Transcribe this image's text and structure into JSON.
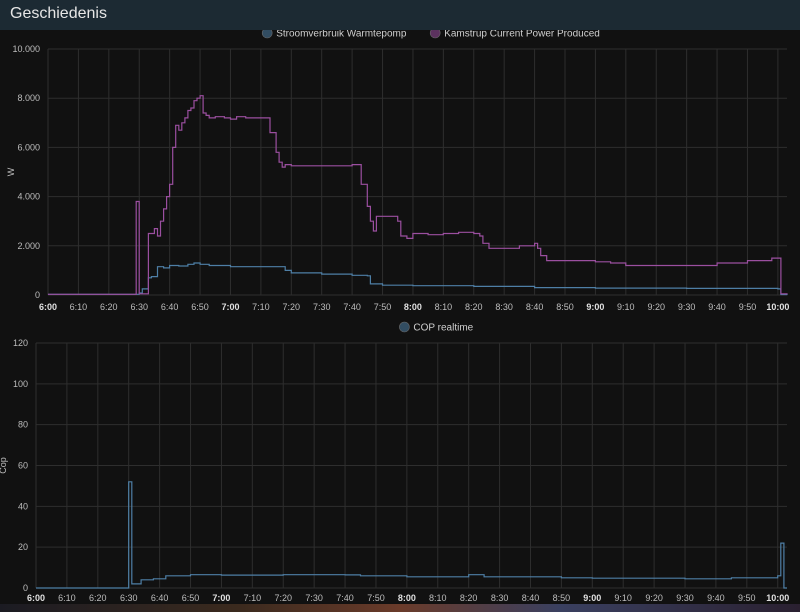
{
  "header": {
    "title": "Geschiedenis"
  },
  "chart_data": [
    {
      "type": "line",
      "step": true,
      "ylabel": "W",
      "ylim": [
        0,
        10000
      ],
      "yticks": [
        0,
        2000,
        4000,
        6000,
        8000,
        10000
      ],
      "ytick_labels": [
        "0",
        "2.000",
        "4.000",
        "6.000",
        "8.000",
        "10.000"
      ],
      "xlim": [
        "6:00",
        "10:03"
      ],
      "xticks": [
        "6:00",
        "6:10",
        "6:20",
        "6:30",
        "6:40",
        "6:50",
        "7:00",
        "7:10",
        "7:20",
        "7:30",
        "7:40",
        "7:50",
        "8:00",
        "8:10",
        "8:20",
        "8:30",
        "8:40",
        "8:50",
        "9:00",
        "9:10",
        "9:20",
        "9:30",
        "9:40",
        "9:50",
        "10:00"
      ],
      "xticks_bold": [
        "6:00",
        "7:00",
        "8:00",
        "9:00",
        "10:00"
      ],
      "grid": true,
      "legend_position": "top-center",
      "series": [
        {
          "name": "Stroomverbruik Warmtepomp",
          "color": "#4e7fa6",
          "points": [
            [
              "6:00",
              30
            ],
            [
              "6:29",
              30
            ],
            [
              "6:30",
              80
            ],
            [
              "6:31",
              250
            ],
            [
              "6:33",
              700
            ],
            [
              "6:34",
              750
            ],
            [
              "6:36",
              1150
            ],
            [
              "6:38",
              1100
            ],
            [
              "6:40",
              1200
            ],
            [
              "6:43",
              1180
            ],
            [
              "6:46",
              1250
            ],
            [
              "6:48",
              1300
            ],
            [
              "6:50",
              1250
            ],
            [
              "6:53",
              1200
            ],
            [
              "7:00",
              1150
            ],
            [
              "7:15",
              1150
            ],
            [
              "7:18",
              1000
            ],
            [
              "7:20",
              900
            ],
            [
              "7:30",
              850
            ],
            [
              "7:40",
              800
            ],
            [
              "7:45",
              780
            ],
            [
              "7:46",
              450
            ],
            [
              "7:50",
              400
            ],
            [
              "8:00",
              380
            ],
            [
              "8:20",
              350
            ],
            [
              "8:40",
              300
            ],
            [
              "9:00",
              280
            ],
            [
              "9:30",
              270
            ],
            [
              "10:00",
              250
            ],
            [
              "10:01",
              20
            ],
            [
              "10:03",
              40
            ]
          ]
        },
        {
          "name": "Kamstrup Current Power Produced",
          "color": "#9b4fa0",
          "points": [
            [
              "6:00",
              30
            ],
            [
              "6:28",
              30
            ],
            [
              "6:29",
              3800
            ],
            [
              "6:30",
              50
            ],
            [
              "6:32",
              50
            ],
            [
              "6:33",
              2500
            ],
            [
              "6:35",
              2700
            ],
            [
              "6:36",
              2400
            ],
            [
              "6:37",
              3000
            ],
            [
              "6:38",
              3500
            ],
            [
              "6:39",
              4000
            ],
            [
              "6:40",
              4500
            ],
            [
              "6:41",
              6000
            ],
            [
              "6:42",
              6900
            ],
            [
              "6:43",
              6700
            ],
            [
              "6:44",
              7000
            ],
            [
              "6:45",
              7200
            ],
            [
              "6:46",
              7500
            ],
            [
              "6:47",
              7600
            ],
            [
              "6:48",
              7900
            ],
            [
              "6:49",
              8000
            ],
            [
              "6:50",
              8100
            ],
            [
              "6:51",
              7400
            ],
            [
              "6:52",
              7300
            ],
            [
              "6:53",
              7200
            ],
            [
              "6:55",
              7250
            ],
            [
              "6:58",
              7200
            ],
            [
              "7:00",
              7150
            ],
            [
              "7:02",
              7250
            ],
            [
              "7:05",
              7200
            ],
            [
              "7:12",
              7200
            ],
            [
              "7:13",
              6600
            ],
            [
              "7:15",
              5800
            ],
            [
              "7:16",
              5400
            ],
            [
              "7:17",
              5200
            ],
            [
              "7:18",
              5300
            ],
            [
              "7:20",
              5250
            ],
            [
              "7:40",
              5300
            ],
            [
              "7:43",
              4500
            ],
            [
              "7:45",
              3600
            ],
            [
              "7:46",
              3000
            ],
            [
              "7:47",
              2600
            ],
            [
              "7:48",
              3200
            ],
            [
              "7:55",
              3000
            ],
            [
              "7:56",
              2400
            ],
            [
              "7:58",
              2300
            ],
            [
              "8:00",
              2500
            ],
            [
              "8:05",
              2450
            ],
            [
              "8:10",
              2500
            ],
            [
              "8:15",
              2550
            ],
            [
              "8:20",
              2500
            ],
            [
              "8:22",
              2400
            ],
            [
              "8:23",
              2100
            ],
            [
              "8:25",
              1900
            ],
            [
              "8:35",
              2000
            ],
            [
              "8:40",
              2100
            ],
            [
              "8:41",
              1900
            ],
            [
              "8:42",
              1600
            ],
            [
              "8:44",
              1400
            ],
            [
              "8:50",
              1400
            ],
            [
              "9:00",
              1350
            ],
            [
              "9:05",
              1300
            ],
            [
              "9:10",
              1200
            ],
            [
              "9:40",
              1300
            ],
            [
              "9:50",
              1400
            ],
            [
              "9:58",
              1500
            ],
            [
              "10:00",
              1500
            ],
            [
              "10:01",
              50
            ],
            [
              "10:03",
              30
            ]
          ]
        }
      ]
    },
    {
      "type": "line",
      "step": true,
      "ylabel": "Cop",
      "ylim": [
        0,
        120
      ],
      "yticks": [
        0,
        20,
        40,
        60,
        80,
        100,
        120
      ],
      "ytick_labels": [
        "0",
        "20",
        "40",
        "60",
        "80",
        "100",
        "120"
      ],
      "xlim": [
        "6:00",
        "10:03"
      ],
      "xticks": [
        "6:00",
        "6:10",
        "6:20",
        "6:30",
        "6:40",
        "6:50",
        "7:00",
        "7:10",
        "7:20",
        "7:30",
        "7:40",
        "7:50",
        "8:00",
        "8:10",
        "8:20",
        "8:30",
        "8:40",
        "8:50",
        "9:00",
        "9:10",
        "9:20",
        "9:30",
        "9:40",
        "9:50",
        "10:00"
      ],
      "xticks_bold": [
        "6:00",
        "7:00",
        "8:00",
        "9:00",
        "10:00"
      ],
      "grid": true,
      "legend_position": "top-center",
      "series": [
        {
          "name": "COP realtime",
          "color": "#4e7fa6",
          "points": [
            [
              "6:00",
              0
            ],
            [
              "6:29",
              0
            ],
            [
              "6:30",
              52
            ],
            [
              "6:31",
              2
            ],
            [
              "6:33",
              2
            ],
            [
              "6:34",
              4
            ],
            [
              "6:38",
              4.5
            ],
            [
              "6:42",
              6
            ],
            [
              "6:50",
              6.5
            ],
            [
              "7:00",
              6.3
            ],
            [
              "7:20",
              6.5
            ],
            [
              "7:40",
              6.4
            ],
            [
              "7:45",
              6
            ],
            [
              "8:00",
              5.5
            ],
            [
              "8:20",
              6.5
            ],
            [
              "8:25",
              5.5
            ],
            [
              "8:40",
              5.5
            ],
            [
              "8:50",
              5
            ],
            [
              "9:00",
              4.8
            ],
            [
              "9:30",
              4.5
            ],
            [
              "9:45",
              5
            ],
            [
              "10:00",
              6
            ],
            [
              "10:01",
              22
            ],
            [
              "10:02",
              0
            ],
            [
              "10:03",
              0
            ]
          ]
        }
      ]
    }
  ]
}
